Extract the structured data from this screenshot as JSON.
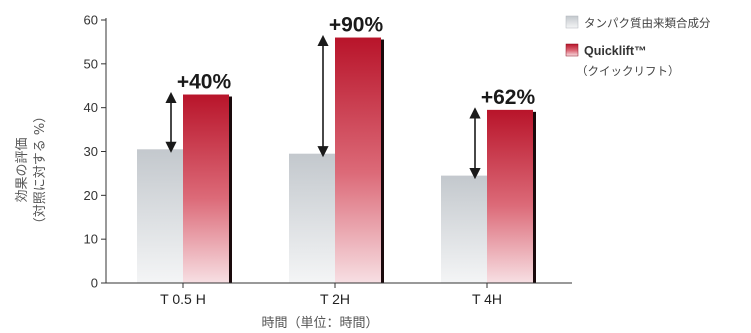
{
  "chart_data": {
    "type": "bar",
    "categories": [
      "T 0.5 H",
      "T 2H",
      "T 4H"
    ],
    "series": [
      {
        "name": "タンパク質由来類合成分",
        "values": [
          30.5,
          29.5,
          24.5
        ],
        "color": "#c9cdd1"
      },
      {
        "name": "Quicklift™",
        "name_sub": "（クイックリフト）",
        "values": [
          43,
          56,
          39.5
        ],
        "color": "#c0182c"
      }
    ],
    "annotations": [
      "+40%",
      "+90%",
      "+62%"
    ],
    "ylabel_line1": "効果の評価",
    "ylabel_line2": "（対照に対する %）",
    "xlabel": "時間（単位：時間）",
    "yticks": [
      0,
      10,
      20,
      30,
      40,
      50,
      60
    ],
    "ylim": [
      0,
      60
    ],
    "grid": false,
    "legend_position": "top-right"
  }
}
